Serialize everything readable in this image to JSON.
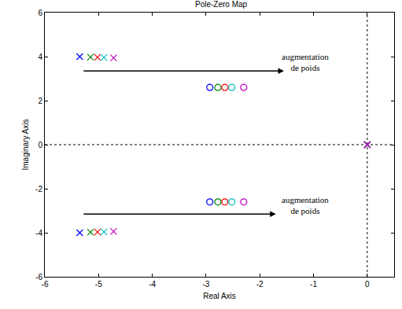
{
  "chart_data": {
    "type": "scatter",
    "title": "Pole-Zero Map",
    "x_label": "Real Axis",
    "y_label": "Imaginary Axis",
    "xlim": [
      -6,
      0.5
    ],
    "xticks": [
      -6,
      -5,
      -4,
      -3,
      -2,
      -1,
      0
    ],
    "ylim": [
      -6,
      6
    ],
    "yticks": [
      -6,
      -4,
      -2,
      0,
      2,
      4,
      6
    ],
    "grid": false,
    "reference_lines": [
      {
        "axis": "x",
        "value": 0
      },
      {
        "axis": "y",
        "value": 0
      }
    ],
    "series": [
      {
        "color": "#0000ff",
        "marker": "x",
        "x": [
          -5.35,
          -5.35,
          0
        ],
        "y": [
          4.0,
          -4.0,
          0
        ]
      },
      {
        "color": "#008000",
        "marker": "x",
        "x": [
          -5.15,
          -5.15,
          0
        ],
        "y": [
          3.98,
          -3.98,
          0
        ]
      },
      {
        "color": "#ff0000",
        "marker": "x",
        "x": [
          -5.02,
          -5.02,
          0
        ],
        "y": [
          3.97,
          -3.97,
          0
        ]
      },
      {
        "color": "#00bfbf",
        "marker": "x",
        "x": [
          -4.9,
          -4.9,
          0
        ],
        "y": [
          3.96,
          -3.96,
          0
        ]
      },
      {
        "color": "#bf00bf",
        "marker": "x",
        "x": [
          -4.72,
          -4.72,
          0
        ],
        "y": [
          3.94,
          -3.94,
          0
        ]
      },
      {
        "color": "#0000ff",
        "marker": "circle",
        "x": [
          -2.93,
          -2.93
        ],
        "y": [
          2.6,
          -2.6
        ]
      },
      {
        "color": "#008000",
        "marker": "circle",
        "x": [
          -2.78,
          -2.78
        ],
        "y": [
          2.6,
          -2.6
        ]
      },
      {
        "color": "#ff0000",
        "marker": "circle",
        "x": [
          -2.65,
          -2.65
        ],
        "y": [
          2.6,
          -2.6
        ]
      },
      {
        "color": "#00bfbf",
        "marker": "circle",
        "x": [
          -2.52,
          -2.52
        ],
        "y": [
          2.6,
          -2.6
        ]
      },
      {
        "color": "#bf00bf",
        "marker": "circle",
        "x": [
          -2.3,
          -2.3
        ],
        "y": [
          2.6,
          -2.6
        ]
      }
    ],
    "annotations": [
      {
        "text": "augmentation\nde poids",
        "x": -1.15,
        "y": 3.75,
        "arrow_from": [
          -5.3,
          3.35
        ],
        "arrow_to": [
          -1.55,
          3.35
        ]
      },
      {
        "text": "augmentation\nde poids",
        "x": -1.15,
        "y": -2.75,
        "arrow_from": [
          -5.3,
          -3.15
        ],
        "arrow_to": [
          -1.7,
          -3.15
        ]
      }
    ]
  }
}
